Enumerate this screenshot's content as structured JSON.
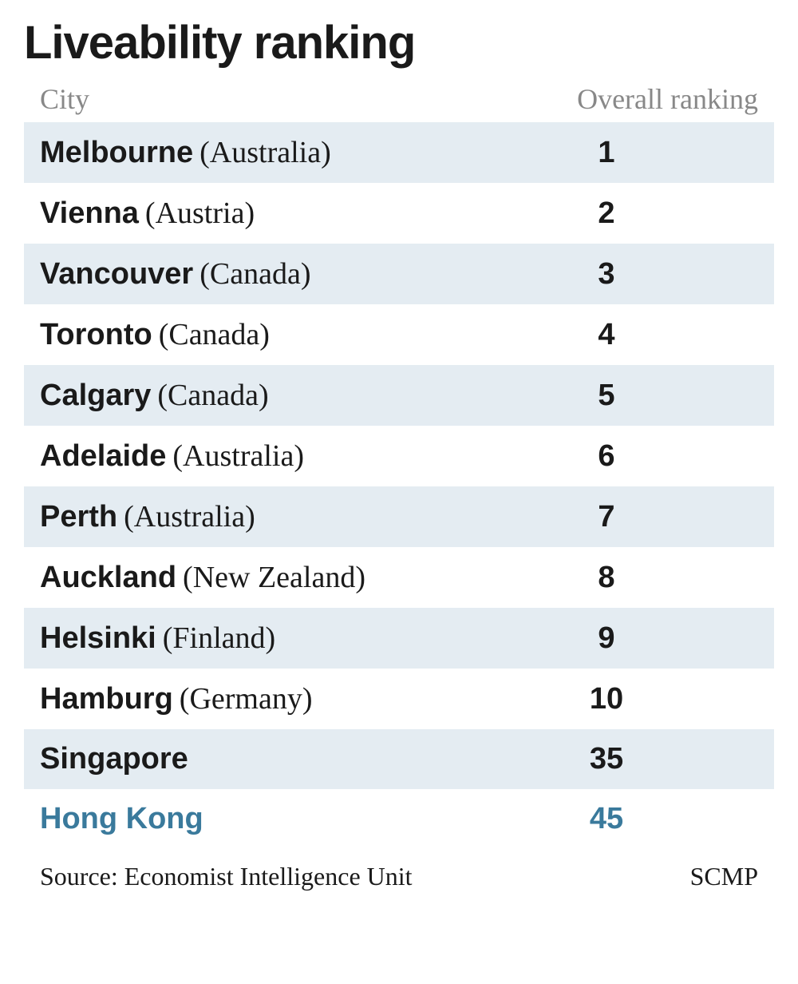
{
  "title": "Liveability ranking",
  "columns": {
    "city": "City",
    "ranking": "Overall ranking"
  },
  "rows": [
    {
      "city": "Melbourne",
      "country": "(Australia)",
      "ranking": "1",
      "highlight": false
    },
    {
      "city": "Vienna",
      "country": "(Austria)",
      "ranking": "2",
      "highlight": false
    },
    {
      "city": "Vancouver",
      "country": "(Canada)",
      "ranking": "3",
      "highlight": false
    },
    {
      "city": "Toronto",
      "country": "(Canada)",
      "ranking": "4",
      "highlight": false
    },
    {
      "city": "Calgary",
      "country": "(Canada)",
      "ranking": "5",
      "highlight": false
    },
    {
      "city": "Adelaide",
      "country": "(Australia)",
      "ranking": "6",
      "highlight": false
    },
    {
      "city": "Perth",
      "country": "(Australia)",
      "ranking": "7",
      "highlight": false
    },
    {
      "city": "Auckland",
      "country": "(New Zealand)",
      "ranking": "8",
      "highlight": false
    },
    {
      "city": "Helsinki",
      "country": "(Finland)",
      "ranking": "9",
      "highlight": false
    },
    {
      "city": "Hamburg",
      "country": "(Germany)",
      "ranking": "10",
      "highlight": false
    },
    {
      "city": "Singapore",
      "country": "",
      "ranking": "35",
      "highlight": false
    },
    {
      "city": "Hong Kong",
      "country": "",
      "ranking": "45",
      "highlight": true
    }
  ],
  "footer": {
    "source": "Source: Economist Intelligence Unit",
    "credit": "SCMP"
  },
  "styling": {
    "background_color": "#ffffff",
    "row_odd_bg": "#e4ecf2",
    "row_even_bg": "#ffffff",
    "text_color": "#1a1a1a",
    "header_text_color": "#888888",
    "highlight_color": "#3a7a9c",
    "title_fontsize": 58,
    "header_fontsize": 36,
    "row_fontsize": 38,
    "footer_fontsize": 32,
    "city_font_weight": 700,
    "country_font_weight": 400,
    "ranking_font_weight": 700
  }
}
